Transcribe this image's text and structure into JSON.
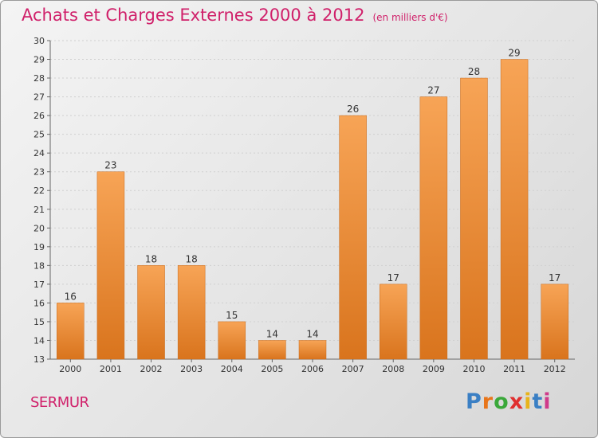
{
  "title": "Achats et Charges Externes 2000 à 2012",
  "subtitle": "(en milliers d'€)",
  "place": "SERMUR",
  "logo": {
    "letters": [
      "P",
      "r",
      "o",
      "x",
      "i",
      "t",
      "i"
    ],
    "colors": [
      "#3a7fc4",
      "#e8751a",
      "#3aa83a",
      "#e03030",
      "#e8b31a",
      "#3a7fc4",
      "#d03a8a"
    ]
  },
  "colors": {
    "bar_top": "#f7a456",
    "bar_bottom": "#d9741d",
    "accent": "#d0206a"
  },
  "chart_data": {
    "type": "bar",
    "categories": [
      "2000",
      "2001",
      "2002",
      "2003",
      "2004",
      "2005",
      "2006",
      "2007",
      "2008",
      "2009",
      "2010",
      "2011",
      "2012"
    ],
    "values": [
      16,
      23,
      18,
      18,
      15,
      14,
      14,
      26,
      17,
      27,
      28,
      29,
      17
    ],
    "title": "Achats et Charges Externes 2000 à 2012",
    "ylim": [
      13,
      30
    ],
    "yticks": [
      13,
      14,
      15,
      16,
      17,
      18,
      19,
      20,
      21,
      22,
      23,
      24,
      25,
      26,
      27,
      28,
      29,
      30
    ],
    "grid": true,
    "data_labels": true
  }
}
